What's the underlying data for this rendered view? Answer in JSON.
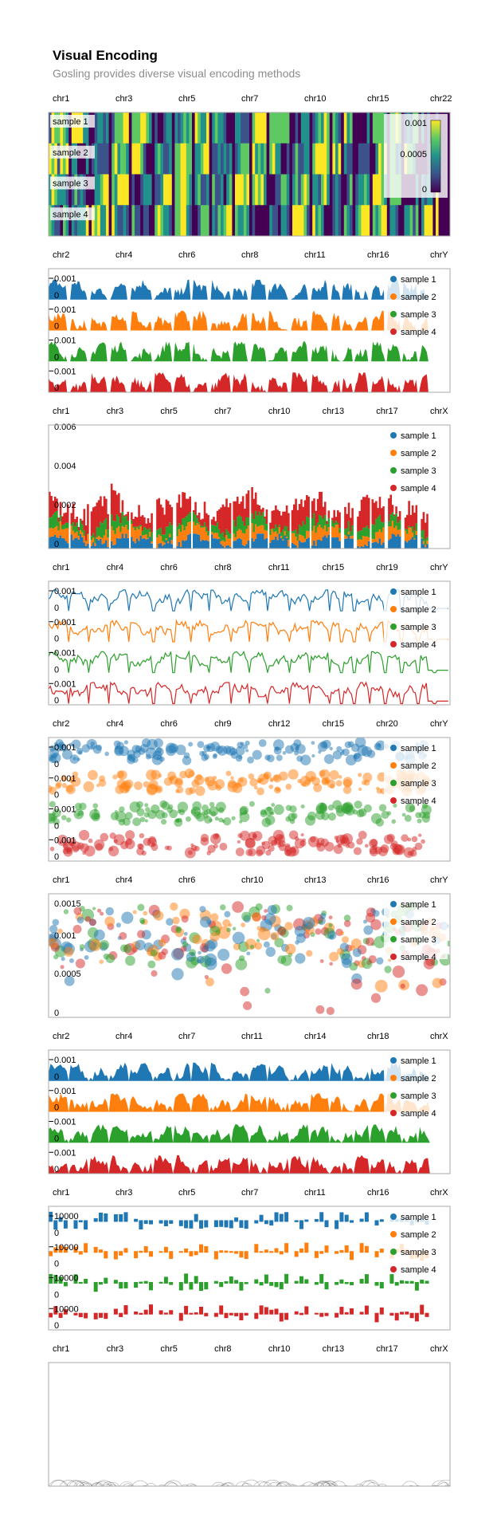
{
  "header": {
    "title": "Visual Encoding",
    "subtitle": "Gosling provides diverse visual encoding methods"
  },
  "colors": {
    "series": [
      "#1f77b4",
      "#ff7f0e",
      "#2ca02c",
      "#d62728"
    ],
    "viridis": [
      "#440154",
      "#3b528b",
      "#21918c",
      "#5ec962",
      "#fde725"
    ],
    "frame": "#aaaaaa",
    "text": "#000000"
  },
  "chart_data": [
    {
      "type": "heatmap",
      "chromosome_ticks": [
        "chr1",
        "chr3",
        "chr5",
        "chr7",
        "chr10",
        "chr15",
        "chr22"
      ],
      "rows": [
        "sample 1",
        "sample 2",
        "sample 3",
        "sample 4"
      ],
      "color_legend": {
        "labels": [
          "0.001",
          "0.0005",
          "0"
        ],
        "range": [
          0,
          0.001
        ]
      }
    },
    {
      "type": "bar",
      "chromosome_ticks": [
        "chr2",
        "chr4",
        "chr6",
        "chr8",
        "chr11",
        "chr16",
        "chrY"
      ],
      "series": [
        {
          "name": "sample 1"
        },
        {
          "name": "sample 2"
        },
        {
          "name": "sample 3"
        },
        {
          "name": "sample 4"
        }
      ],
      "row_ticks": [
        "0.001",
        "0"
      ]
    },
    {
      "type": "bar",
      "chromosome_ticks": [
        "chr1",
        "chr3",
        "chr5",
        "chr7",
        "chr10",
        "chr13",
        "chr17",
        "chrX"
      ],
      "series": [
        {
          "name": "sample 1"
        },
        {
          "name": "sample 2"
        },
        {
          "name": "sample 3"
        },
        {
          "name": "sample 4"
        }
      ],
      "y_ticks": [
        "0.006",
        "0.004",
        "0.002",
        "0"
      ],
      "ylim": [
        0,
        0.006
      ]
    },
    {
      "type": "line",
      "chromosome_ticks": [
        "chr1",
        "chr4",
        "chr6",
        "chr8",
        "chr11",
        "chr15",
        "chr19",
        "chrY"
      ],
      "series": [
        {
          "name": "sample 1"
        },
        {
          "name": "sample 2"
        },
        {
          "name": "sample 3"
        },
        {
          "name": "sample 4"
        }
      ],
      "row_ticks": [
        "0.001",
        "0"
      ]
    },
    {
      "type": "scatter",
      "chromosome_ticks": [
        "chr2",
        "chr4",
        "chr6",
        "chr9",
        "chr12",
        "chr15",
        "chr20",
        "chrY"
      ],
      "series": [
        {
          "name": "sample 1"
        },
        {
          "name": "sample 2"
        },
        {
          "name": "sample 3"
        },
        {
          "name": "sample 4"
        }
      ],
      "row_ticks": [
        "0.001",
        "0"
      ]
    },
    {
      "type": "scatter",
      "chromosome_ticks": [
        "chr1",
        "chr4",
        "chr6",
        "chr10",
        "chr13",
        "chr16",
        "chrY"
      ],
      "series": [
        {
          "name": "sample 1"
        },
        {
          "name": "sample 2"
        },
        {
          "name": "sample 3"
        },
        {
          "name": "sample 4"
        }
      ],
      "y_ticks": [
        "0.0015",
        "0.001",
        "0.0005",
        "0"
      ],
      "ylim": [
        0,
        0.0015
      ]
    },
    {
      "type": "area",
      "chromosome_ticks": [
        "chr2",
        "chr4",
        "chr7",
        "chr11",
        "chr14",
        "chr18",
        "chrX"
      ],
      "series": [
        {
          "name": "sample 1"
        },
        {
          "name": "sample 2"
        },
        {
          "name": "sample 3"
        },
        {
          "name": "sample 4"
        }
      ],
      "row_ticks": [
        "0.001",
        "0"
      ]
    },
    {
      "type": "bar",
      "chromosome_ticks": [
        "chr1",
        "chr3",
        "chr5",
        "chr7",
        "chr11",
        "chr16",
        "chrX"
      ],
      "series": [
        {
          "name": "sample 1"
        },
        {
          "name": "sample 2"
        },
        {
          "name": "sample 3"
        },
        {
          "name": "sample 4"
        }
      ],
      "row_ticks": [
        "10000",
        "0"
      ]
    },
    {
      "type": "scatter",
      "chromosome_ticks": [
        "chr1",
        "chr3",
        "chr5",
        "chr8",
        "chr10",
        "chr13",
        "chr17",
        "chrX"
      ]
    }
  ]
}
